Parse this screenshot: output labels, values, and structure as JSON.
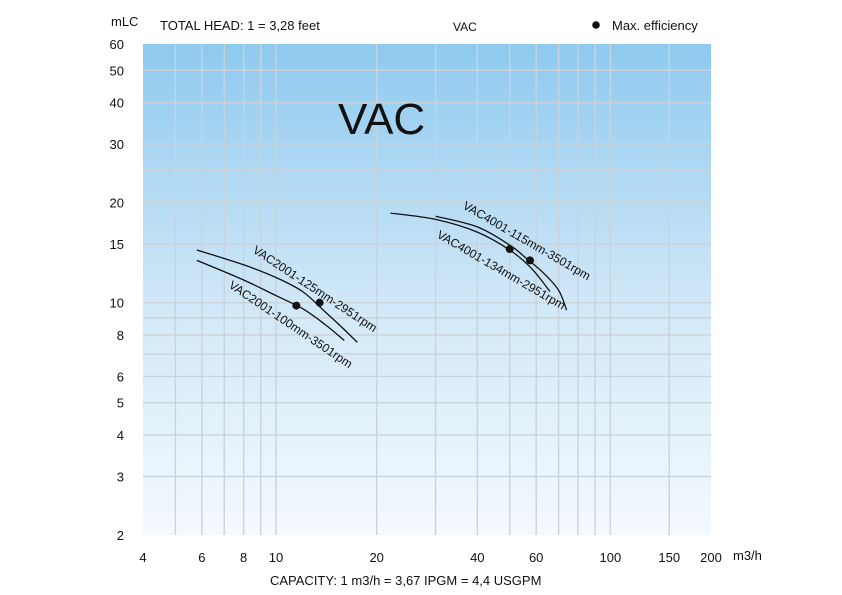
{
  "header": {
    "y_unit": "mLC",
    "total_head_note": "TOTAL HEAD: 1  = 3,28 feet",
    "model_family": "VAC",
    "legend_marker_label": "Max. efficiency"
  },
  "footer": {
    "x_unit": "m3/h",
    "capacity_note": "CAPACITY: 1  m3/h   = 3,67 IPGM = 4,4 USGPM"
  },
  "colors": {
    "plot_top": "#8ec9ef",
    "plot_bottom": "#f4f9fd",
    "grid": "#c8d3dc",
    "curve": "#111111"
  },
  "chart_data": {
    "type": "line",
    "title": "VAC",
    "x_scale": "log",
    "y_scale": "log",
    "xlim": [
      4,
      200
    ],
    "ylim": [
      2,
      60
    ],
    "xlabel": "m3/h",
    "ylabel": "mLC",
    "x_ticks": [
      4,
      6,
      8,
      10,
      20,
      40,
      60,
      100,
      150,
      200
    ],
    "y_ticks": [
      2,
      3,
      4,
      5,
      6,
      8,
      10,
      15,
      20,
      30,
      40,
      50,
      60
    ],
    "x_grid": [
      5,
      6,
      7,
      8,
      9,
      10,
      20,
      30,
      40,
      50,
      60,
      70,
      80,
      90,
      100,
      150
    ],
    "y_grid": [
      3,
      4,
      5,
      6,
      7,
      8,
      9,
      10,
      15,
      20,
      25,
      30,
      40,
      50
    ],
    "grid": true,
    "legend_position": "top-right",
    "series": [
      {
        "name": "VAC2001-125mm-2951rpm",
        "x": [
          5.8,
          8,
          10,
          12,
          14,
          16,
          17.5
        ],
        "y": [
          14.4,
          13.0,
          11.9,
          10.8,
          9.4,
          8.3,
          7.6
        ],
        "max_efficiency": [
          13.5,
          10.0
        ]
      },
      {
        "name": "VAC2001-100mm-3501rpm",
        "x": [
          5.8,
          8,
          10,
          12,
          14,
          16
        ],
        "y": [
          13.4,
          11.7,
          10.5,
          9.6,
          8.6,
          7.7
        ],
        "max_efficiency": [
          11.5,
          9.8
        ]
      },
      {
        "name": "VAC4001-115mm-3501rpm",
        "x": [
          30,
          40,
          50,
          56,
          63,
          70,
          74
        ],
        "y": [
          18.2,
          16.9,
          14.9,
          13.6,
          12.3,
          10.9,
          9.5
        ],
        "max_efficiency": [
          57.5,
          13.4
        ]
      },
      {
        "name": "VAC4001-134mm-2951rpm",
        "x": [
          22,
          30,
          40,
          50,
          58,
          66
        ],
        "y": [
          18.6,
          17.8,
          16.3,
          14.4,
          12.7,
          10.8
        ],
        "max_efficiency": [
          50,
          14.5
        ]
      }
    ]
  }
}
